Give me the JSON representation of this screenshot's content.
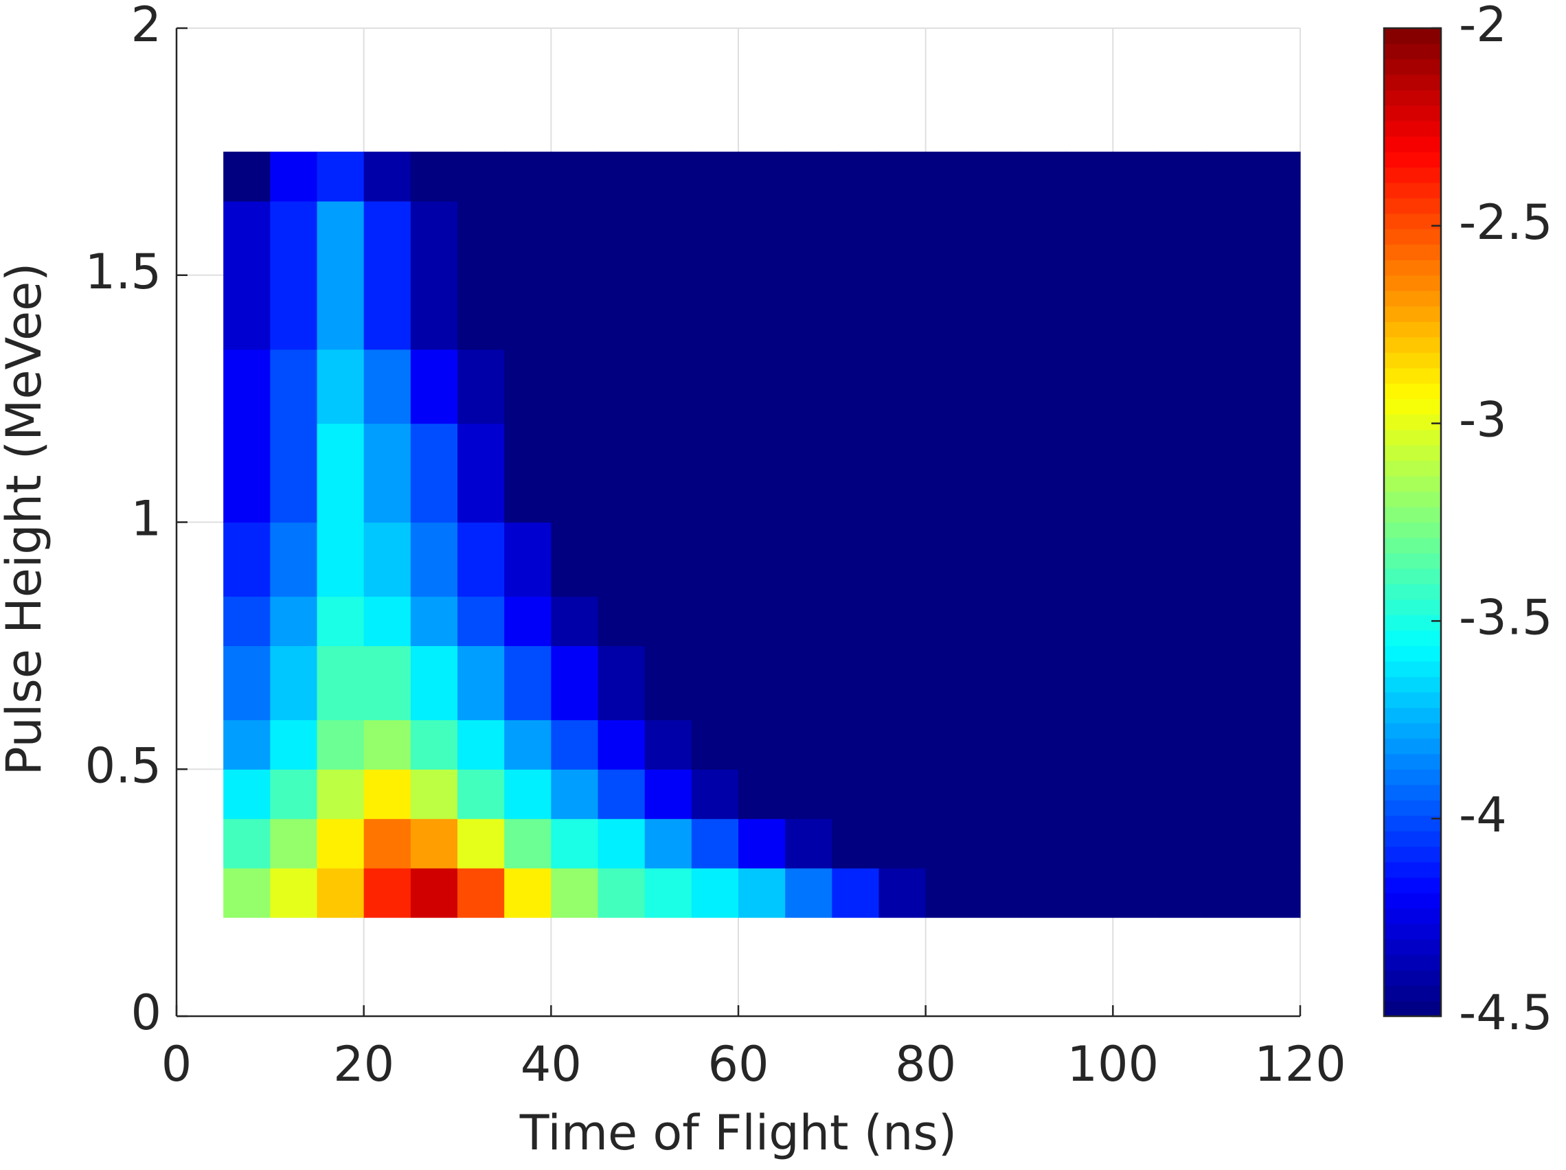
{
  "chart_data": {
    "type": "heatmap",
    "xlabel": "Time of Flight (ns)",
    "ylabel": "Pulse Height (MeVee)",
    "x_edges": [
      5,
      10,
      15,
      20,
      25,
      30,
      35,
      40,
      45,
      50,
      55,
      60,
      65,
      70,
      75,
      80,
      85,
      90,
      95,
      100,
      105,
      110,
      115,
      120
    ],
    "y_edges": [
      0.2,
      0.3,
      0.4,
      0.5,
      0.6,
      0.75,
      0.85,
      1.0,
      1.2,
      1.35,
      1.65,
      1.75
    ],
    "values": [
      [
        -3.2,
        -3.0,
        -2.8,
        -2.4,
        -2.2,
        -2.5,
        -2.9,
        -3.2,
        -3.4,
        -3.5,
        -3.6,
        -3.7,
        -3.9,
        -4.1,
        -4.4,
        -4.5,
        -4.5,
        -4.5,
        -4.5,
        -4.5,
        -4.5,
        -4.5,
        -4.5
      ],
      [
        -3.4,
        -3.2,
        -2.9,
        -2.6,
        -2.7,
        -3.0,
        -3.3,
        -3.5,
        -3.6,
        -3.8,
        -4.0,
        -4.2,
        -4.4,
        -4.5,
        -4.5,
        -4.5,
        -4.5,
        -4.5,
        -4.5,
        -4.5,
        -4.5,
        -4.5,
        -4.5
      ],
      [
        -3.6,
        -3.4,
        -3.1,
        -2.9,
        -3.1,
        -3.4,
        -3.6,
        -3.8,
        -4.0,
        -4.2,
        -4.4,
        -4.5,
        -4.5,
        -4.5,
        -4.5,
        -4.5,
        -4.5,
        -4.5,
        -4.5,
        -4.5,
        -4.5,
        -4.5,
        -4.5
      ],
      [
        -3.8,
        -3.6,
        -3.3,
        -3.2,
        -3.4,
        -3.6,
        -3.8,
        -4.0,
        -4.2,
        -4.4,
        -4.5,
        -4.5,
        -4.5,
        -4.5,
        -4.5,
        -4.5,
        -4.5,
        -4.5,
        -4.5,
        -4.5,
        -4.5,
        -4.5,
        -4.5
      ],
      [
        -3.9,
        -3.7,
        -3.4,
        -3.4,
        -3.6,
        -3.8,
        -4.0,
        -4.2,
        -4.4,
        -4.5,
        -4.5,
        -4.5,
        -4.5,
        -4.5,
        -4.5,
        -4.5,
        -4.5,
        -4.5,
        -4.5,
        -4.5,
        -4.5,
        -4.5,
        -4.5
      ],
      [
        -4.0,
        -3.8,
        -3.5,
        -3.6,
        -3.8,
        -4.0,
        -4.2,
        -4.4,
        -4.5,
        -4.5,
        -4.5,
        -4.5,
        -4.5,
        -4.5,
        -4.5,
        -4.5,
        -4.5,
        -4.5,
        -4.5,
        -4.5,
        -4.5,
        -4.5,
        -4.5
      ],
      [
        -4.1,
        -3.9,
        -3.6,
        -3.7,
        -3.9,
        -4.1,
        -4.3,
        -4.5,
        -4.5,
        -4.5,
        -4.5,
        -4.5,
        -4.5,
        -4.5,
        -4.5,
        -4.5,
        -4.5,
        -4.5,
        -4.5,
        -4.5,
        -4.5,
        -4.5,
        -4.5
      ],
      [
        -4.2,
        -4.0,
        -3.6,
        -3.8,
        -4.0,
        -4.3,
        -4.5,
        -4.5,
        -4.5,
        -4.5,
        -4.5,
        -4.5,
        -4.5,
        -4.5,
        -4.5,
        -4.5,
        -4.5,
        -4.5,
        -4.5,
        -4.5,
        -4.5,
        -4.5,
        -4.5
      ],
      [
        -4.2,
        -4.0,
        -3.7,
        -3.9,
        -4.2,
        -4.4,
        -4.5,
        -4.5,
        -4.5,
        -4.5,
        -4.5,
        -4.5,
        -4.5,
        -4.5,
        -4.5,
        -4.5,
        -4.5,
        -4.5,
        -4.5,
        -4.5,
        -4.5,
        -4.5,
        -4.5
      ],
      [
        -4.3,
        -4.1,
        -3.8,
        -4.1,
        -4.4,
        -4.5,
        -4.5,
        -4.5,
        -4.5,
        -4.5,
        -4.5,
        -4.5,
        -4.5,
        -4.5,
        -4.5,
        -4.5,
        -4.5,
        -4.5,
        -4.5,
        -4.5,
        -4.5,
        -4.5,
        -4.5
      ],
      [
        -4.5,
        -4.2,
        -4.1,
        -4.4,
        -4.5,
        -4.5,
        -4.5,
        -4.5,
        -4.5,
        -4.5,
        -4.5,
        -4.5,
        -4.5,
        -4.5,
        -4.5,
        -4.5,
        -4.5,
        -4.5,
        -4.5,
        -4.5,
        -4.5,
        -4.5,
        -4.5
      ]
    ],
    "xlim": [
      0,
      120
    ],
    "xticks": [
      0,
      20,
      40,
      60,
      80,
      100,
      120
    ],
    "ylim": [
      0,
      2
    ],
    "yticks": [
      0,
      0.5,
      1,
      1.5,
      2
    ],
    "zlim": [
      -4.5,
      -2
    ],
    "zticks": [
      -4.5,
      -4,
      -3.5,
      -3,
      -2.5,
      -2
    ],
    "colormap": "jet",
    "grid": true
  }
}
